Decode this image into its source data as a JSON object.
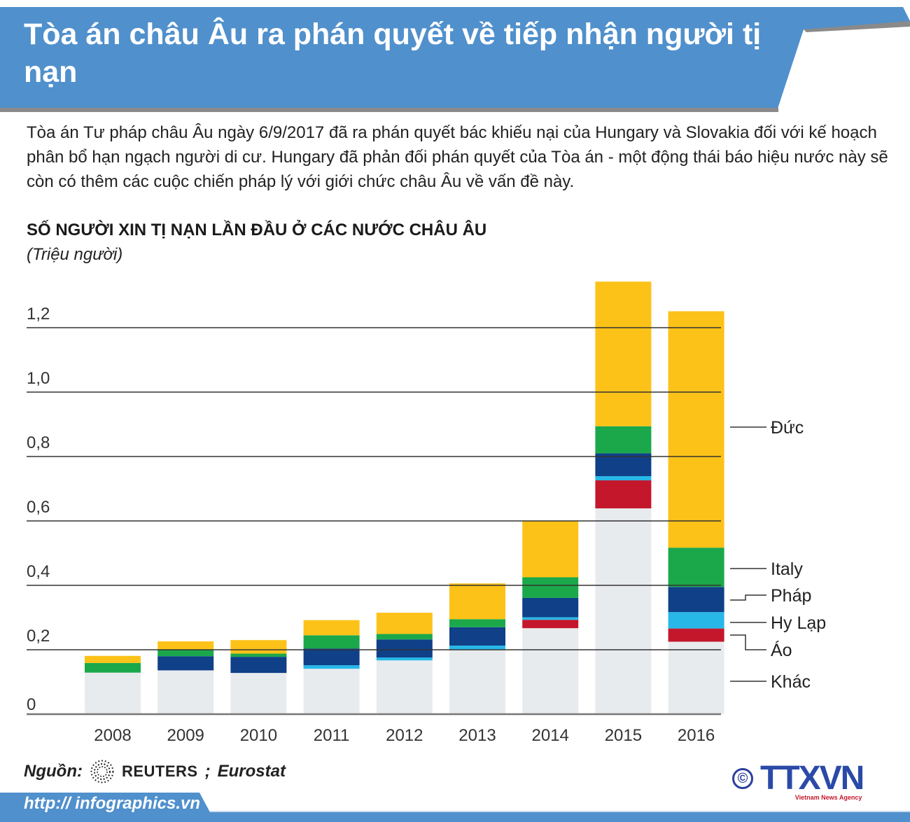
{
  "header": {
    "title": "Tòa án châu Âu ra phán quyết về tiếp nhận người tị nạn",
    "color": "#5090cc"
  },
  "intro": "Tòa án Tư pháp châu Âu ngày 6/9/2017 đã ra phán quyết bác khiếu nại của Hungary và Slovakia đối với kế hoạch phân bổ hạn ngạch người di cư. Hungary đã phản đối phán quyết của Tòa án - một động thái báo hiệu nước này sẽ còn có thêm các cuộc chiến pháp lý với giới chức châu Âu về vấn đề này.",
  "chart_data": {
    "type": "bar",
    "stacked": true,
    "title": "SỐ NGƯỜI XIN TỊ NẠN LẦN ĐẦU Ở CÁC NƯỚC CHÂU ÂU",
    "ylabel": "(Triệu người)",
    "xlabel": "",
    "ylim": [
      0,
      1.35
    ],
    "yticks": [
      "0",
      "0,2",
      "0,4",
      "0,6",
      "0,8",
      "1,0",
      "1,2"
    ],
    "ytick_values": [
      0,
      0.2,
      0.4,
      0.6,
      0.8,
      1.0,
      1.2
    ],
    "grid": true,
    "legend_position": "right",
    "categories": [
      "2008",
      "2009",
      "2010",
      "2011",
      "2012",
      "2013",
      "2014",
      "2015",
      "2016"
    ],
    "series": [
      {
        "name": "Khác",
        "color": "#e8ebee",
        "values": [
          0.129,
          0.136,
          0.128,
          0.141,
          0.167,
          0.199,
          0.267,
          0.639,
          0.225
        ]
      },
      {
        "name": "Áo",
        "color": "#c4172b",
        "values": [
          0,
          0,
          0,
          0,
          0,
          0,
          0.026,
          0.087,
          0.041
        ]
      },
      {
        "name": "Hy Lạp",
        "color": "#27b8e8",
        "values": [
          0,
          0,
          0,
          0.011,
          0.009,
          0.014,
          0.008,
          0.013,
          0.051
        ]
      },
      {
        "name": "Pháp",
        "color": "#0f4088",
        "values": [
          0,
          0.044,
          0.05,
          0.052,
          0.056,
          0.057,
          0.06,
          0.071,
          0.078
        ]
      },
      {
        "name": "Italy",
        "color": "#1ba84b",
        "values": [
          0.03,
          0.019,
          0.01,
          0.041,
          0.017,
          0.025,
          0.064,
          0.084,
          0.122
        ]
      },
      {
        "name": "Đức",
        "color": "#fdc218",
        "values": [
          0.022,
          0.027,
          0.042,
          0.047,
          0.066,
          0.111,
          0.175,
          0.449,
          0.734
        ]
      }
    ]
  },
  "footer": {
    "source_label": "Nguồn:",
    "source_reuters": "REUTERS",
    "source_sep": ";",
    "source_eurostat": "Eurostat",
    "url": "http:// infographics.vn",
    "copyright": "©",
    "logo_text": "TTXVN",
    "logo_sub": "Vietnam News Agency"
  }
}
